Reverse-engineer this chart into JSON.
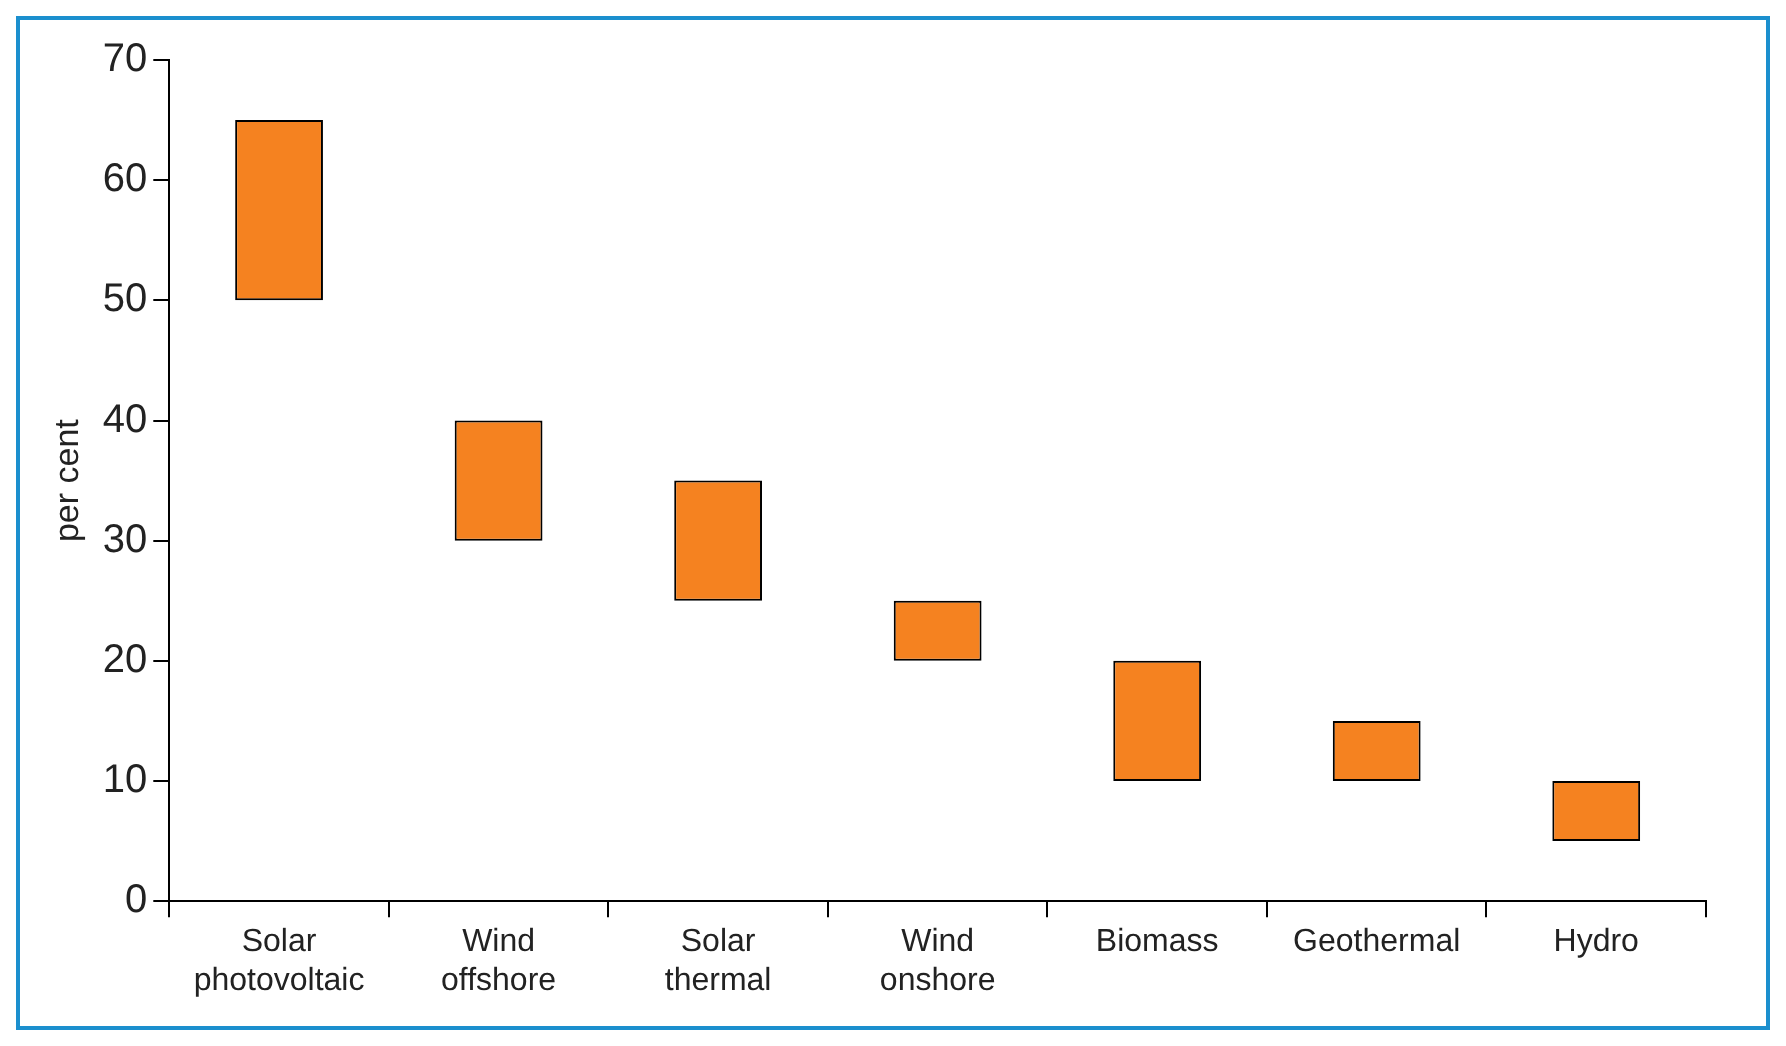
{
  "chart_data": {
    "type": "bar",
    "ylabel": "per cent",
    "categories": [
      "Solar photovoltaic",
      "Wind offshore",
      "Solar thermal",
      "Wind onshore",
      "Biomass",
      "Geothermal",
      "Hydro"
    ],
    "base": [
      50,
      30,
      25,
      20,
      10,
      10,
      5
    ],
    "values": [
      15,
      10,
      10,
      5,
      10,
      5,
      5
    ],
    "color": "#f58220",
    "ylim": [
      0,
      70
    ],
    "yticks": [
      0,
      10,
      20,
      30,
      40,
      50,
      60,
      70
    ],
    "grid": false,
    "legend": false
  }
}
